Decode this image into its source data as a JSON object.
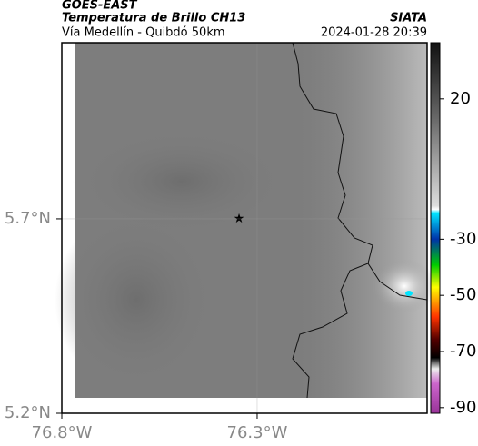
{
  "header": {
    "title": "GOES-EAST",
    "subtitle": "Temperatura de Brillo CH13",
    "source": "SIATA",
    "region": "Vía Medellín - Quibdó 50km",
    "timestamp": "2024-01-28 20:39"
  },
  "map": {
    "xlim": [
      -76.8,
      -75.865
    ],
    "ylim": [
      5.2,
      6.153
    ],
    "xticks": [
      {
        "value": -76.8,
        "label": "76.8°W"
      },
      {
        "value": -76.3,
        "label": "76.3°W"
      }
    ],
    "yticks": [
      {
        "value": 5.2,
        "label": "5.2°N"
      },
      {
        "value": 5.7,
        "label": "5.7°N"
      }
    ]
  },
  "colorbar": {
    "lim": [
      -92,
      40
    ],
    "ticks": [
      20,
      -30,
      -50,
      -70,
      -90
    ]
  }
}
